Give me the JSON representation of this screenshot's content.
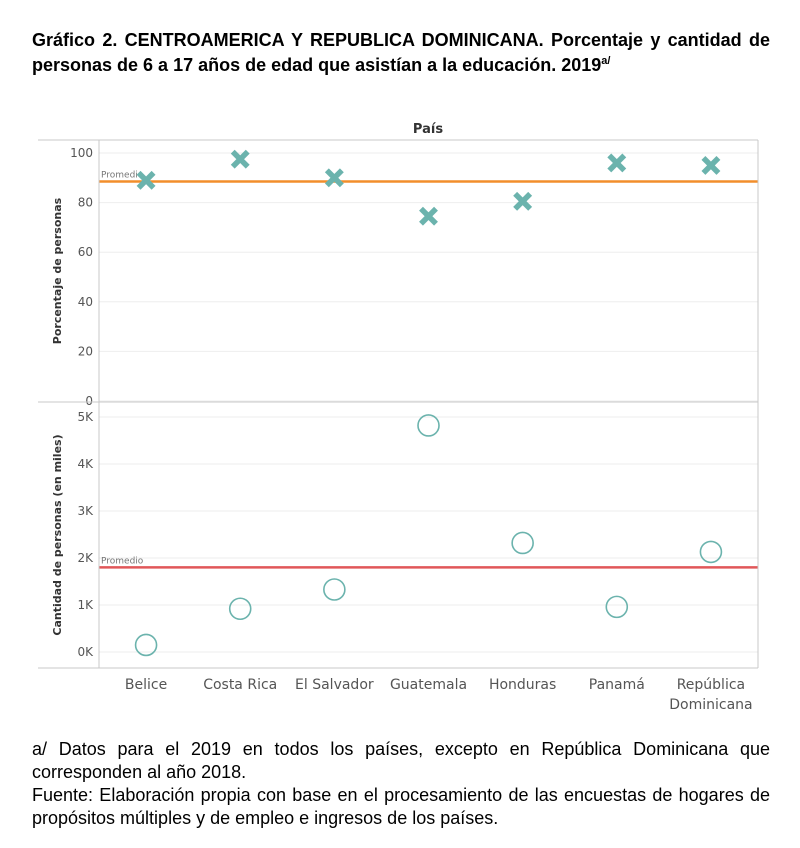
{
  "title": {
    "text": "Gráfico 2. CENTROAMERICA Y REPUBLICA DOMINICANA. Porcentaje y cantidad de personas de 6 a 17 años de edad que asistían a la educación. 2019",
    "superscript": "a/"
  },
  "chart_data": {
    "type": "scatter",
    "column_header": "País",
    "categories": [
      "Belice",
      "Costa Rica",
      "El Salvador",
      "Guatemala",
      "Honduras",
      "Panamá",
      "República Dominicana"
    ],
    "panels": [
      {
        "ylabel": "Porcentaje de personas",
        "marker": "x",
        "ylim": [
          0,
          100
        ],
        "yticks": [
          0,
          20,
          40,
          60,
          80,
          100
        ],
        "ytick_labels": [
          "0",
          "20",
          "40",
          "60",
          "80",
          "100"
        ],
        "values": [
          89,
          97.5,
          90,
          74.5,
          80.5,
          96,
          95
        ],
        "reference_line": {
          "label": "Promedio",
          "value": 88.5,
          "color": "#f28e2b"
        },
        "color": "#6bb3ad"
      },
      {
        "ylabel": "Cantidad de personas (en miles)",
        "marker": "circle",
        "ylim": [
          -300,
          5300
        ],
        "yticks": [
          0,
          1000,
          2000,
          3000,
          4000,
          5000
        ],
        "ytick_labels": [
          "0K",
          "1K",
          "2K",
          "3K",
          "4K",
          "5K"
        ],
        "values": [
          150,
          920,
          1330,
          4820,
          2320,
          960,
          2130
        ],
        "reference_line": {
          "label": "Promedio",
          "value": 1800,
          "color": "#e15759"
        },
        "color": "#6bb3ad"
      }
    ]
  },
  "notes": [
    "a/ Datos para el 2019 en todos los países, excepto en República Dominicana que corresponden al año 2018.",
    "Fuente: Elaboración propia con base en el procesamiento de las encuestas de hogares de propósitos múltiples y de empleo e ingresos de los países."
  ]
}
